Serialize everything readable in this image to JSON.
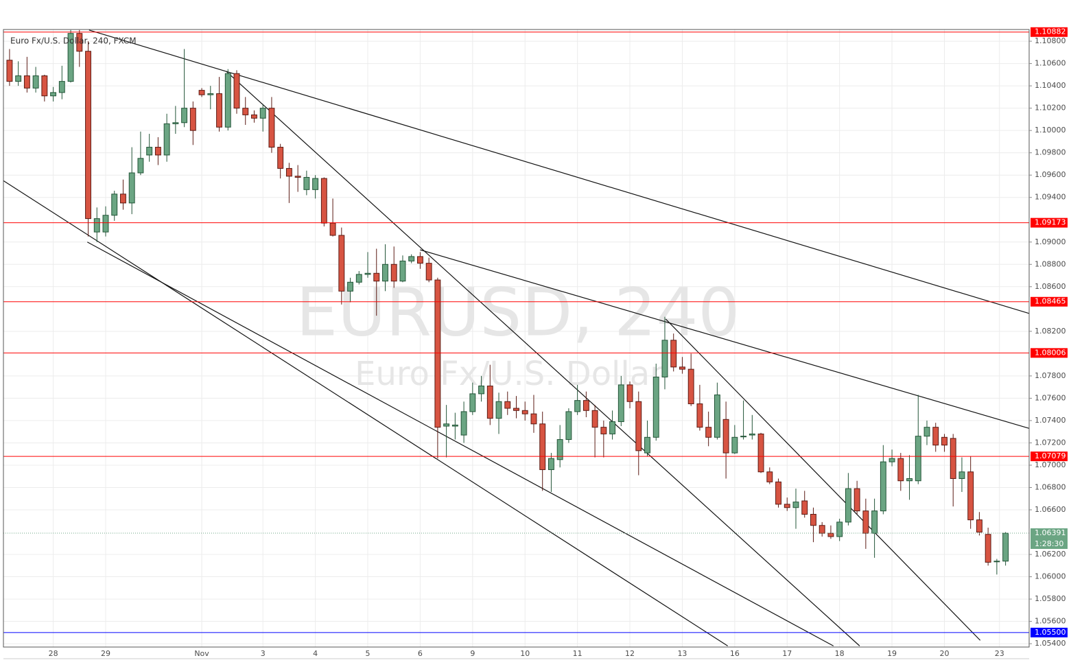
{
  "chart_data": {
    "type": "candlestick",
    "title": "Euro Fx/U.S. Dollar, 240, FXCM",
    "watermark": "EURUSD, 240",
    "watermark_sub": "Euro Fx/U.S. Dollar",
    "xlim": [
      -0.7,
      116.7
    ],
    "ylim": [
      1.0537,
      1.10905
    ],
    "grid": true,
    "up_color": "#6ba583",
    "down_color": "#d75442",
    "xticks": [
      {
        "value": 5,
        "label": "28"
      },
      {
        "value": 11,
        "label": "29"
      },
      {
        "value": 22,
        "label": "Nov"
      },
      {
        "value": 29,
        "label": "3"
      },
      {
        "value": 35,
        "label": "4"
      },
      {
        "value": 41,
        "label": "5"
      },
      {
        "value": 47,
        "label": "6"
      },
      {
        "value": 53,
        "label": "9"
      },
      {
        "value": 59,
        "label": "10"
      },
      {
        "value": 65,
        "label": "11"
      },
      {
        "value": 71,
        "label": "12"
      },
      {
        "value": 77,
        "label": "13"
      },
      {
        "value": 83,
        "label": "16"
      },
      {
        "value": 89,
        "label": "17"
      },
      {
        "value": 95,
        "label": "18"
      },
      {
        "value": 101,
        "label": "19"
      },
      {
        "value": 107,
        "label": "20"
      },
      {
        "value": 113.3,
        "label": "23"
      }
    ],
    "yticks": [
      {
        "value": 1.108,
        "label": "1.10800"
      },
      {
        "value": 1.106,
        "label": "1.10600"
      },
      {
        "value": 1.104,
        "label": "1.10400"
      },
      {
        "value": 1.102,
        "label": "1.10200"
      },
      {
        "value": 1.1,
        "label": "1.10000"
      },
      {
        "value": 1.098,
        "label": "1.09800"
      },
      {
        "value": 1.096,
        "label": "1.09600"
      },
      {
        "value": 1.094,
        "label": "1.09400"
      },
      {
        "value": 1.09,
        "label": "1.09000"
      },
      {
        "value": 1.088,
        "label": "1.08800"
      },
      {
        "value": 1.086,
        "label": "1.08600"
      },
      {
        "value": 1.082,
        "label": "1.08200"
      },
      {
        "value": 1.078,
        "label": "1.07800"
      },
      {
        "value": 1.076,
        "label": "1.07600"
      },
      {
        "value": 1.074,
        "label": "1.07400"
      },
      {
        "value": 1.072,
        "label": "1.07200"
      },
      {
        "value": 1.07,
        "label": "1.07000"
      },
      {
        "value": 1.068,
        "label": "1.06800"
      },
      {
        "value": 1.066,
        "label": "1.06600"
      },
      {
        "value": 1.062,
        "label": "1.06200"
      },
      {
        "value": 1.06,
        "label": "1.06000"
      },
      {
        "value": 1.058,
        "label": "1.05800"
      },
      {
        "value": 1.056,
        "label": "1.05600"
      },
      {
        "value": 1.054,
        "label": "1.05400"
      }
    ],
    "levels": [
      {
        "value": 1.10882,
        "label": "1.10882",
        "color": "#ff0000"
      },
      {
        "value": 1.09173,
        "label": "1.09173",
        "color": "#ff0000"
      },
      {
        "value": 1.08465,
        "label": "1.08465",
        "color": "#ff0000"
      },
      {
        "value": 1.08006,
        "label": "1.08006",
        "color": "#ff0000"
      },
      {
        "value": 1.07079,
        "label": "1.07079",
        "color": "#ff0000"
      },
      {
        "value": 1.055,
        "label": "1.05500",
        "color": "#0000ff"
      }
    ],
    "last": {
      "value": 1.06391,
      "label": "1.06391",
      "countdown": "1:28:30",
      "color": "#6ba583"
    },
    "trendlines": [
      {
        "x": [
          9.1,
          116.7
        ],
        "y": [
          1.109,
          1.0836
        ]
      },
      {
        "x": [
          24.8,
          97.3
        ],
        "y": [
          1.1053,
          1.0538
        ]
      },
      {
        "x": [
          47.0,
          116.7
        ],
        "y": [
          1.0893,
          1.0733
        ]
      },
      {
        "x": [
          -0.7,
          82.2
        ],
        "y": [
          1.0955,
          1.0538
        ]
      },
      {
        "x": [
          8.9,
          94.3
        ],
        "y": [
          1.09,
          1.0538
        ]
      },
      {
        "x": [
          75.1,
          111.1
        ],
        "y": [
          1.0831,
          1.0543
        ]
      }
    ],
    "open": [
      1.1063,
      1.1044,
      1.1049,
      1.1038,
      1.1049,
      1.1031,
      1.1034,
      1.1044,
      1.1087,
      1.1071,
      1.0909,
      1.0909,
      1.0924,
      1.0943,
      1.0935,
      1.0962,
      1.0978,
      1.0985,
      1.0978,
      1.1006,
      1.1007,
      1.102,
      1.1036,
      1.1032,
      1.1033,
      1.1003,
      1.1051,
      1.102,
      1.1014,
      1.1011,
      1.102,
      1.0985,
      1.0966,
      1.0959,
      1.0947,
      1.0947,
      1.0957,
      1.0917,
      1.0906,
      1.0856,
      1.0864,
      1.0871,
      1.0872,
      1.0865,
      1.088,
      1.0865,
      1.0883,
      1.0887,
      1.0881,
      1.0866,
      1.0735,
      1.0735,
      1.0727,
      1.0748,
      1.0764,
      1.0771,
      1.0742,
      1.0757,
      1.0751,
      1.0749,
      1.0746,
      1.0737,
      1.0696,
      1.0705,
      1.0723,
      1.0748,
      1.0758,
      1.0749,
      1.0734,
      1.0728,
      1.0739,
      1.0772,
      1.0757,
      1.0711,
      1.0725,
      1.0779,
      1.0812,
      1.0788,
      1.0786,
      1.0755,
      1.0734,
      1.0725,
      1.0741,
      1.0711,
      1.0726,
      1.0727,
      1.0728,
      1.0694,
      1.0685,
      1.0665,
      1.0662,
      1.0668,
      1.0656,
      1.0646,
      1.0639,
      1.0636,
      1.0649,
      1.0679,
      1.0659,
      1.0639,
      1.0659,
      1.0703,
      1.0706,
      1.0686,
      1.0686,
      1.0726,
      1.0734,
      1.0725,
      1.0724,
      1.0688,
      1.0694,
      1.0651,
      1.0638,
      1.0614,
      1.0614
    ],
    "high": [
      1.1073,
      1.1062,
      1.1066,
      1.1057,
      1.105,
      1.1039,
      1.1058,
      1.109,
      1.109,
      1.108,
      1.0931,
      1.0932,
      1.0946,
      1.0956,
      1.0985,
      1.0999,
      1.0997,
      1.0994,
      1.1015,
      1.1022,
      1.1073,
      1.1026,
      1.1038,
      1.104,
      1.1048,
      1.1055,
      1.1054,
      1.103,
      1.1018,
      1.1023,
      1.103,
      1.0988,
      1.0971,
      1.0969,
      1.0964,
      1.096,
      1.0958,
      1.0939,
      1.0913,
      1.0868,
      1.0874,
      1.0891,
      1.0894,
      1.0898,
      1.0896,
      1.0888,
      1.0889,
      1.0891,
      1.0886,
      1.0868,
      1.0754,
      1.0747,
      1.0757,
      1.0774,
      1.078,
      1.079,
      1.0765,
      1.0766,
      1.0762,
      1.0757,
      1.0763,
      1.0748,
      1.0711,
      1.0736,
      1.0751,
      1.0772,
      1.0766,
      1.0754,
      1.074,
      1.0749,
      1.078,
      1.0775,
      1.0766,
      1.074,
      1.0791,
      1.0833,
      1.0818,
      1.0797,
      1.08,
      1.0772,
      1.0748,
      1.0774,
      1.0757,
      1.0736,
      1.0758,
      1.0745,
      1.0729,
      1.0698,
      1.0688,
      1.0671,
      1.0679,
      1.0677,
      1.0662,
      1.0649,
      1.0646,
      1.0652,
      1.0693,
      1.0686,
      1.067,
      1.067,
      1.0718,
      1.0714,
      1.0711,
      1.0709,
      1.0763,
      1.074,
      1.0738,
      1.0728,
      1.0728,
      1.0707,
      1.0708,
      1.0658,
      1.0644,
      1.0616,
      1.064
    ],
    "low": [
      1.104,
      1.104,
      1.1034,
      1.1034,
      1.1026,
      1.1026,
      1.1028,
      1.1043,
      1.1057,
      1.0905,
      1.09,
      1.0905,
      1.0919,
      1.0929,
      1.0925,
      1.096,
      1.0972,
      1.0969,
      1.0972,
      1.0997,
      1.1003,
      1.0987,
      1.103,
      1.1019,
      1.0999,
      1.1,
      1.1015,
      1.1005,
      1.1007,
      1.0999,
      1.098,
      1.0957,
      1.0935,
      1.0945,
      1.0942,
      1.0939,
      1.0914,
      1.0905,
      1.0844,
      1.0846,
      1.0862,
      1.0868,
      1.0834,
      1.0856,
      1.0859,
      1.0864,
      1.0881,
      1.0876,
      1.0864,
      1.0706,
      1.0707,
      1.0723,
      1.072,
      1.0745,
      1.0757,
      1.0736,
      1.0728,
      1.0745,
      1.0742,
      1.074,
      1.0729,
      1.0677,
      1.0676,
      1.0698,
      1.072,
      1.0745,
      1.0743,
      1.0707,
      1.0707,
      1.0723,
      1.0735,
      1.0751,
      1.0691,
      1.0708,
      1.0722,
      1.0768,
      1.0784,
      1.0782,
      1.0753,
      1.0731,
      1.0717,
      1.0723,
      1.0688,
      1.071,
      1.0723,
      1.0723,
      1.0693,
      1.0683,
      1.0662,
      1.0659,
      1.0643,
      1.0653,
      1.0631,
      1.0636,
      1.0634,
      1.0632,
      1.0646,
      1.0656,
      1.0625,
      1.0617,
      1.0656,
      1.0699,
      1.0677,
      1.0669,
      1.0683,
      1.0718,
      1.0712,
      1.0712,
      1.0663,
      1.0676,
      1.0643,
      1.0637,
      1.061,
      1.0602,
      1.061
    ],
    "close": [
      1.1044,
      1.1049,
      1.1038,
      1.1049,
      1.1031,
      1.1034,
      1.1044,
      1.1087,
      1.1071,
      1.0921,
      1.0921,
      1.0924,
      1.0943,
      1.0935,
      1.0962,
      1.0975,
      1.0985,
      1.0978,
      1.1006,
      1.1007,
      1.102,
      1.1,
      1.1032,
      1.1033,
      1.1003,
      1.1051,
      1.102,
      1.1014,
      1.1011,
      1.102,
      1.0985,
      1.0966,
      1.0959,
      1.0958,
      1.0958,
      1.0957,
      1.0917,
      1.0906,
      1.0856,
      1.0864,
      1.0871,
      1.0872,
      1.0865,
      1.088,
      1.0865,
      1.0883,
      1.0887,
      1.0881,
      1.0866,
      1.0734,
      1.0737,
      1.0736,
      1.0748,
      1.0764,
      1.0771,
      1.0742,
      1.0757,
      1.0751,
      1.0749,
      1.0746,
      1.0737,
      1.0696,
      1.0706,
      1.0723,
      1.0748,
      1.0758,
      1.0749,
      1.0734,
      1.0728,
      1.0739,
      1.0772,
      1.0757,
      1.0713,
      1.0725,
      1.0779,
      1.0812,
      1.0788,
      1.0786,
      1.0755,
      1.0734,
      1.0725,
      1.0763,
      1.0711,
      1.0725,
      1.0726,
      1.0728,
      1.0694,
      1.0685,
      1.0665,
      1.0662,
      1.0667,
      1.0656,
      1.0646,
      1.0639,
      1.0636,
      1.0649,
      1.0679,
      1.0659,
      1.0639,
      1.0659,
      1.0703,
      1.0706,
      1.0686,
      1.0688,
      1.0726,
      1.0734,
      1.0718,
      1.0718,
      1.0688,
      1.0694,
      1.0651,
      1.064,
      1.0613,
      1.0614,
      1.0639
    ]
  }
}
